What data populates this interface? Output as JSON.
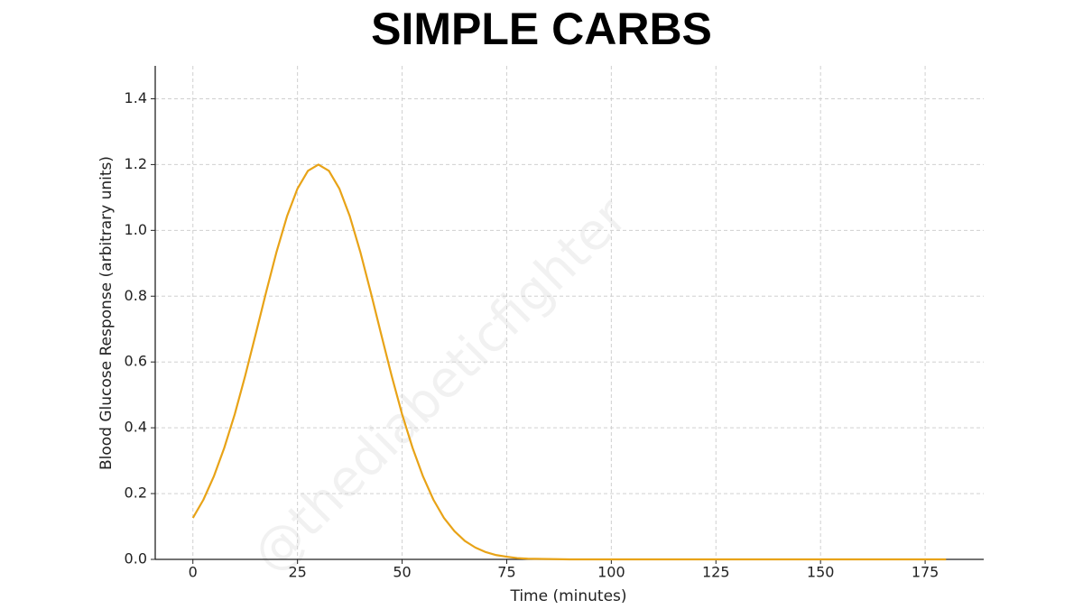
{
  "chart_data": {
    "type": "line",
    "title": "SIMPLE CARBS",
    "xlabel": "Time (minutes)",
    "ylabel": "Blood Glucose Response (arbitrary units)",
    "watermark": "@thediabeticfighter",
    "x": [
      0,
      2.5,
      5,
      7.5,
      10,
      12.5,
      15,
      17.5,
      20,
      22.5,
      25,
      27.5,
      30,
      32.5,
      35,
      37.5,
      40,
      42.5,
      45,
      47.5,
      50,
      52.5,
      55,
      57.5,
      60,
      62.5,
      65,
      67.5,
      70,
      72.5,
      75,
      77.5,
      80,
      90,
      100,
      110,
      120,
      130,
      140,
      150,
      160,
      170,
      180
    ],
    "series": [
      {
        "name": "Simple carbs",
        "color": "#e8a317",
        "values": [
          0.126,
          0.181,
          0.252,
          0.339,
          0.441,
          0.558,
          0.684,
          0.812,
          0.935,
          1.043,
          1.127,
          1.181,
          1.2,
          1.181,
          1.127,
          1.043,
          0.935,
          0.812,
          0.684,
          0.558,
          0.441,
          0.339,
          0.252,
          0.181,
          0.126,
          0.086,
          0.056,
          0.036,
          0.022,
          0.013,
          0.008,
          0.004,
          0.002,
          0,
          0,
          0,
          0,
          0,
          0,
          0,
          0,
          0,
          0
        ]
      }
    ],
    "xlim": [
      -9,
      189
    ],
    "ylim": [
      0,
      1.5
    ],
    "xticks": [
      0,
      25,
      50,
      75,
      100,
      125,
      150,
      175
    ],
    "yticks": [
      {
        "value": 0,
        "label": "0.0"
      },
      {
        "value": 0.2,
        "label": "0.2"
      },
      {
        "value": 0.4,
        "label": "0.4"
      },
      {
        "value": 0.6,
        "label": "0.6"
      },
      {
        "value": 0.8,
        "label": "0.8"
      },
      {
        "value": 1.0,
        "label": "1.0"
      },
      {
        "value": 1.2,
        "label": "1.2"
      },
      {
        "value": 1.4,
        "label": "1.4"
      }
    ],
    "grid": true
  }
}
